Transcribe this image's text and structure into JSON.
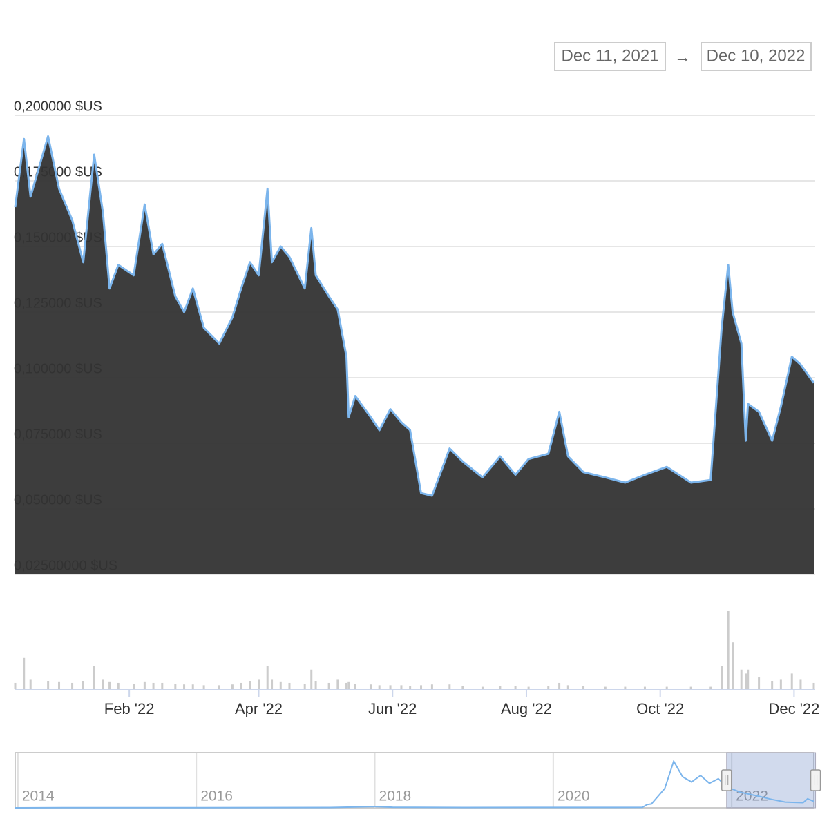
{
  "chart_data": {
    "type": "area",
    "range": {
      "from": "Dec 11, 2021",
      "separator": "→",
      "to": "Dec 10, 2022"
    },
    "x": [
      "2021-12-11",
      "2021-12-15",
      "2021-12-18",
      "2021-12-26",
      "2021-12-31",
      "2022-01-06",
      "2022-01-11",
      "2022-01-16",
      "2022-01-20",
      "2022-01-23",
      "2022-01-27",
      "2022-02-03",
      "2022-02-08",
      "2022-02-12",
      "2022-02-16",
      "2022-02-22",
      "2022-02-26",
      "2022-03-02",
      "2022-03-07",
      "2022-03-14",
      "2022-03-20",
      "2022-03-24",
      "2022-03-28",
      "2022-04-01",
      "2022-04-05",
      "2022-04-07",
      "2022-04-11",
      "2022-04-15",
      "2022-04-22",
      "2022-04-25",
      "2022-04-27",
      "2022-05-03",
      "2022-05-07",
      "2022-05-11",
      "2022-05-12",
      "2022-05-15",
      "2022-05-22",
      "2022-05-26",
      "2022-05-31",
      "2022-06-05",
      "2022-06-09",
      "2022-06-14",
      "2022-06-19",
      "2022-06-27",
      "2022-07-03",
      "2022-07-12",
      "2022-07-20",
      "2022-07-27",
      "2022-08-02",
      "2022-08-11",
      "2022-08-16",
      "2022-08-20",
      "2022-08-27",
      "2022-09-06",
      "2022-09-15",
      "2022-09-24",
      "2022-10-04",
      "2022-10-15",
      "2022-10-24",
      "2022-10-29",
      "2022-11-01",
      "2022-11-03",
      "2022-11-07",
      "2022-11-09",
      "2022-11-10",
      "2022-11-15",
      "2022-11-21",
      "2022-11-25",
      "2022-11-30",
      "2022-12-04",
      "2022-12-10"
    ],
    "values": [
      0.165,
      0.191,
      0.169,
      0.192,
      0.172,
      0.16,
      0.144,
      0.185,
      0.163,
      0.134,
      0.143,
      0.139,
      0.166,
      0.147,
      0.151,
      0.131,
      0.125,
      0.134,
      0.119,
      0.113,
      0.123,
      0.134,
      0.144,
      0.139,
      0.172,
      0.144,
      0.15,
      0.146,
      0.134,
      0.157,
      0.139,
      0.131,
      0.126,
      0.108,
      0.085,
      0.093,
      0.085,
      0.08,
      0.088,
      0.083,
      0.08,
      0.056,
      0.055,
      0.073,
      0.068,
      0.062,
      0.07,
      0.063,
      0.069,
      0.071,
      0.087,
      0.07,
      0.064,
      0.062,
      0.06,
      0.063,
      0.066,
      0.06,
      0.061,
      0.119,
      0.143,
      0.125,
      0.113,
      0.076,
      0.09,
      0.087,
      0.076,
      0.089,
      0.108,
      0.105,
      0.098
    ],
    "color": "#7cb5ec",
    "fill": "#333333",
    "ylim": [
      0.025,
      0.2
    ],
    "yticks": [
      {
        "value": 0.2,
        "label": "0,200000 $US"
      },
      {
        "value": 0.175,
        "label": "0,175000 $US"
      },
      {
        "value": 0.15,
        "label": "0,150000 $US"
      },
      {
        "value": 0.125,
        "label": "0,125000 $US"
      },
      {
        "value": 0.1,
        "label": "0,100000 $US"
      },
      {
        "value": 0.075,
        "label": "0,075000 $US"
      },
      {
        "value": 0.05,
        "label": "0,050000 $US"
      },
      {
        "value": 0.025,
        "label": "0,02500000 $US"
      }
    ],
    "xlim": [
      "2021-12-11",
      "2022-12-10"
    ],
    "xticks": [
      {
        "value": "2022-02-01",
        "label": "Feb '22"
      },
      {
        "value": "2022-04-01",
        "label": "Apr '22"
      },
      {
        "value": "2022-06-01",
        "label": "Jun '22"
      },
      {
        "value": "2022-08-01",
        "label": "Aug '22"
      },
      {
        "value": "2022-10-01",
        "label": "Oct '22"
      },
      {
        "value": "2022-12-01",
        "label": "Dec '22"
      }
    ],
    "grid": true,
    "volume": {
      "color": "#cccccc",
      "ylim": [
        0,
        100
      ],
      "values": [
        8,
        40,
        12,
        10,
        9,
        8,
        10,
        30,
        12,
        9,
        8,
        7,
        9,
        8,
        8,
        7,
        6,
        6,
        5,
        5,
        6,
        8,
        10,
        12,
        30,
        12,
        9,
        8,
        7,
        25,
        10,
        8,
        12,
        8,
        9,
        7,
        6,
        5,
        5,
        5,
        4,
        5,
        6,
        6,
        4,
        3,
        4,
        4,
        3,
        4,
        8,
        5,
        4,
        3,
        3,
        3,
        3,
        3,
        3,
        30,
        100,
        60,
        25,
        20,
        25,
        15,
        10,
        12,
        20,
        12,
        8
      ]
    },
    "navigator": {
      "color": "#7cb5ec",
      "x": [
        2013.97,
        2014.5,
        2016,
        2017.5,
        2018.0,
        2018.2,
        2019,
        2020,
        2021.0,
        2021.05,
        2021.1,
        2021.25,
        2021.35,
        2021.45,
        2021.55,
        2021.65,
        2021.75,
        2021.85,
        2021.95,
        2022.1,
        2022.3,
        2022.45,
        2022.6,
        2022.8,
        2022.85,
        2022.92
      ],
      "values": [
        0,
        0.002,
        0.003,
        0.005,
        0.02,
        0.01,
        0.005,
        0.006,
        0.008,
        0.05,
        0.06,
        0.3,
        0.72,
        0.48,
        0.4,
        0.5,
        0.38,
        0.45,
        0.32,
        0.24,
        0.18,
        0.13,
        0.09,
        0.08,
        0.14,
        0.1
      ],
      "xlim": [
        2013.97,
        2022.92
      ],
      "ylim": [
        0,
        0.8
      ],
      "xticks": [
        2014,
        2016,
        2018,
        2020,
        2022
      ]
    }
  }
}
